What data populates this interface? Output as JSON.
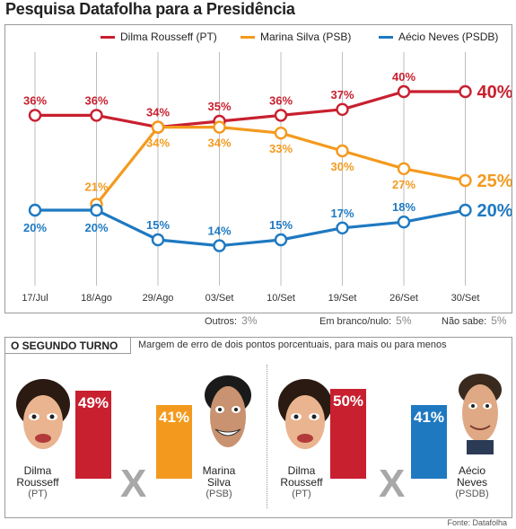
{
  "title": "Pesquisa Datafolha para a Presidência",
  "colors": {
    "dilma": "#c8202f",
    "marina": "#f39a1e",
    "aecio": "#1f79c1",
    "gray": "#a8a8a8"
  },
  "chart_data": {
    "type": "line",
    "x": [
      "17/Jul",
      "18/Ago",
      "29/Ago",
      "03/Set",
      "10/Set",
      "19/Set",
      "26/Set",
      "30/Set"
    ],
    "series": [
      {
        "name": "Dilma Rousseff (PT)",
        "values": [
          36,
          36,
          34,
          35,
          36,
          37,
          40,
          40
        ],
        "labels": [
          "36%",
          "36%",
          "34%",
          "35%",
          "36%",
          "37%",
          "40%",
          "40%"
        ]
      },
      {
        "name": "Marina Silva (PSB)",
        "values": [
          null,
          21,
          34,
          34,
          33,
          30,
          27,
          25
        ],
        "labels": [
          "",
          "21%",
          "34%",
          "34%",
          "33%",
          "30%",
          "27%",
          "25%"
        ]
      },
      {
        "name": "Aécio Neves (PSDB)",
        "values": [
          20,
          20,
          15,
          14,
          15,
          17,
          18,
          20
        ],
        "labels": [
          "20%",
          "20%",
          "15%",
          "14%",
          "15%",
          "17%",
          "18%",
          "20%"
        ]
      }
    ],
    "legend_position": "top-right"
  },
  "footer_stats": [
    {
      "label": "Outros:",
      "value": "3%"
    },
    {
      "label": "Em branco/nulo:",
      "value": "5%"
    },
    {
      "label": "Não sabe:",
      "value": "5%"
    }
  ],
  "runoff": {
    "header": "O SEGUNDO TURNO",
    "note": "Margem de erro de dois pontos porcentuais, para mais ou para menos",
    "vs": "X",
    "matchups": [
      {
        "a": {
          "name1": "Dilma",
          "name2": "Rousseff",
          "party": "(PT)",
          "label": "49%",
          "value": 49
        },
        "b": {
          "name1": "Marina",
          "name2": "Silva",
          "party": "(PSB)",
          "label": "41%",
          "value": 41
        }
      },
      {
        "a": {
          "name1": "Dilma",
          "name2": "Rousseff",
          "party": "(PT)",
          "label": "50%",
          "value": 50
        },
        "b": {
          "name1": "Aécio",
          "name2": "Neves",
          "party": "(PSDB)",
          "label": "41%",
          "value": 41
        }
      }
    ]
  },
  "source": "Fonte: Datafolha"
}
